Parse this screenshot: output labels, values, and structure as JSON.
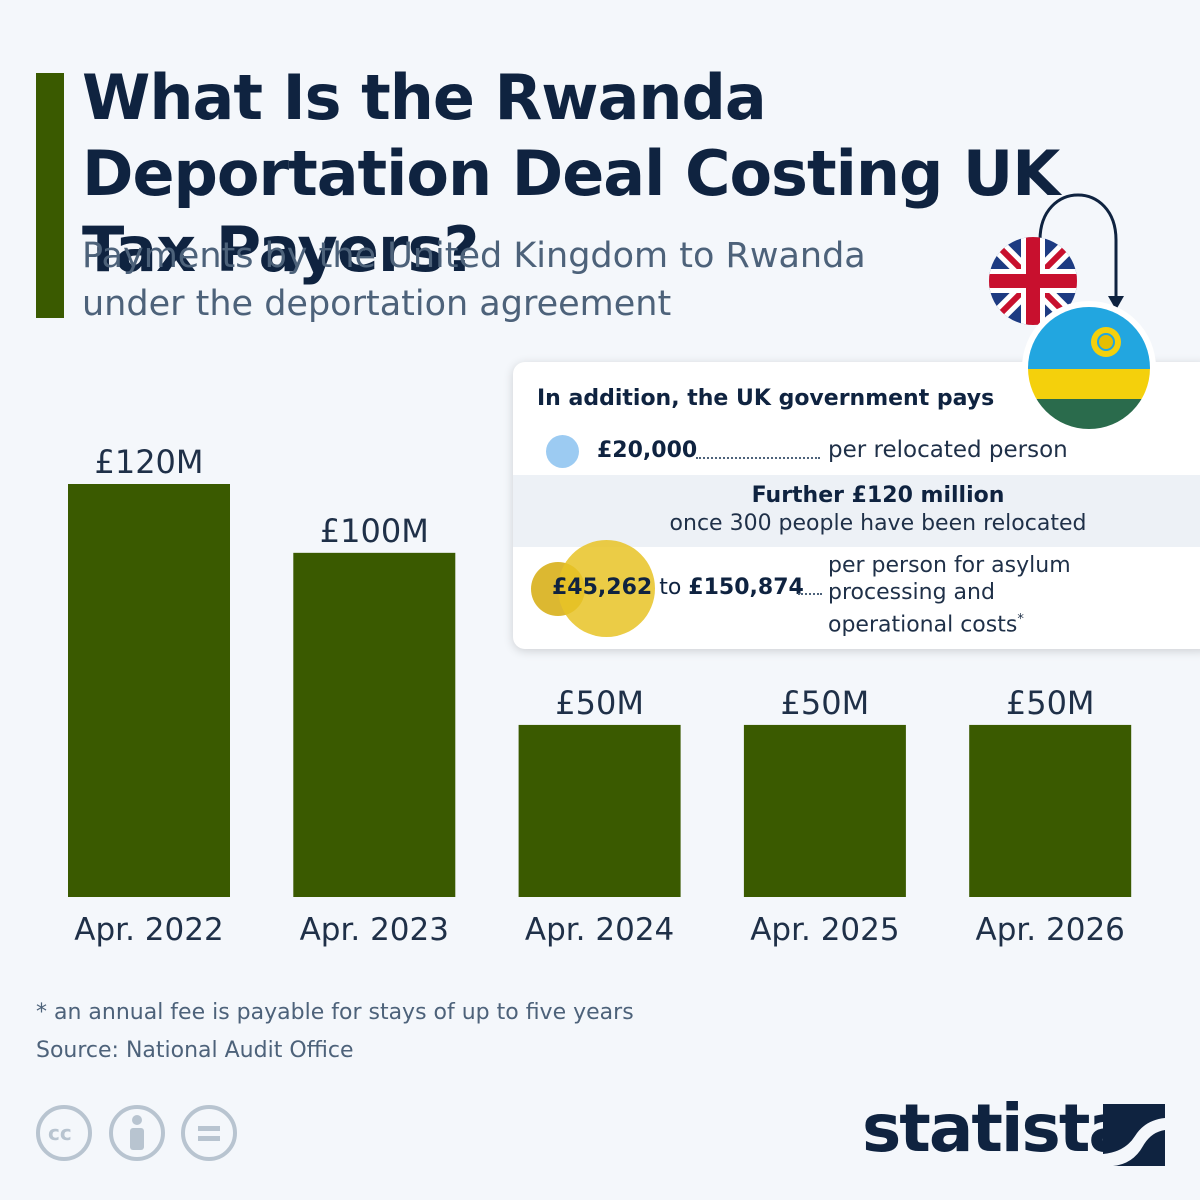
{
  "title": "What Is the Rwanda Deportation Deal Costing UK Tax Payers?",
  "subtitle": "Payments by the United Kingdom to Rwanda under the deportation agreement",
  "chart_data": {
    "type": "bar",
    "categories": [
      "Apr. 2022",
      "Apr. 2023",
      "Apr. 2024",
      "Apr. 2025",
      "Apr. 2026"
    ],
    "values": [
      120,
      100,
      50,
      50,
      50
    ],
    "value_labels": [
      "£120M",
      "£100M",
      "£50M",
      "£50M",
      "£50M"
    ],
    "unit": "million GBP",
    "ylim": [
      0,
      120
    ],
    "color": "#3a5a00",
    "grid": false,
    "legend": "none"
  },
  "card": {
    "heading": "In addition, the UK government pays",
    "row1": {
      "amount": "£20,000",
      "description": "per relocated person"
    },
    "row2": {
      "title": "Further £120 million",
      "subtitle": "once 300 people have been relocated"
    },
    "row3": {
      "min": "£45,262",
      "connector": "to",
      "max": "£150,874",
      "description": "per person for asylum processing and operational costs",
      "marker": "*"
    }
  },
  "footnote": "* an annual fee is payable for stays of up to five years",
  "source": "Source: National Audit Office",
  "brand": "statista",
  "colors": {
    "bar": "#3a5a00",
    "title": "#0f2340",
    "subtitle": "#4d627a",
    "background": "#f4f7fb",
    "blue_circle": "#9ccbf2",
    "yellow_circle": "#e8c326"
  },
  "icons": [
    "uk-flag-icon",
    "rwanda-flag-icon",
    "curved-arrow-icon",
    "cc-icon",
    "by-icon",
    "nd-icon",
    "statista-logo-icon"
  ]
}
